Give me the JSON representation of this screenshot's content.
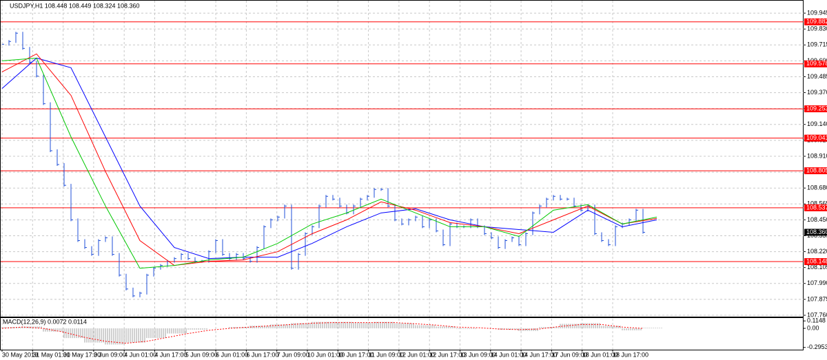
{
  "chart_data": {
    "type": "bars",
    "title": "USDJPY,H1  108.448 108.449 108.324 108.360",
    "color": "#1f4fd8",
    "values": [
      109.72,
      109.74,
      109.8,
      109.69,
      109.59,
      109.49,
      109.29,
      108.95,
      108.85,
      108.7,
      108.45,
      108.3,
      108.25,
      108.2,
      108.3,
      108.32,
      108.2,
      108.05,
      107.95,
      107.9,
      107.92,
      108.05,
      108.1,
      108.12,
      108.15,
      108.17,
      108.2,
      108.17,
      108.15,
      108.15,
      108.22,
      108.3,
      108.2,
      108.17,
      108.2,
      108.17,
      108.15,
      108.25,
      108.4,
      108.45,
      108.47,
      108.55,
      108.1,
      108.2,
      108.35,
      108.4,
      108.55,
      108.62,
      108.6,
      108.55,
      108.5,
      108.55,
      108.6,
      108.62,
      108.67,
      108.67,
      108.55,
      108.45,
      108.42,
      108.45,
      108.47,
      108.4,
      108.45,
      108.37,
      108.27,
      108.42,
      108.4,
      108.4,
      108.45,
      108.4,
      108.35,
      108.32,
      108.25,
      108.3,
      108.32,
      108.27,
      108.35,
      108.5,
      108.55,
      108.6,
      108.62,
      108.6,
      108.6,
      108.55,
      108.52,
      108.55,
      108.35,
      108.3,
      108.27,
      108.4,
      108.42,
      108.45,
      108.52,
      108.36
    ],
    "ylim": [
      107.75,
      110.04
    ],
    "yticks": [
      109.945,
      {
        "value": 109.83,
        "label": "109.830"
      },
      109.715,
      {
        "value": 109.6,
        "label": "109.600"
      },
      109.485,
      {
        "value": 109.37,
        "label": "109.370"
      },
      109.255,
      {
        "value": 109.14,
        "label": "109.140"
      },
      109.025,
      {
        "value": 108.91,
        "label": "108.910"
      },
      108.795,
      {
        "value": 108.68,
        "label": "108.680"
      },
      108.565,
      {
        "value": 108.45,
        "label": "108.450"
      },
      108.335,
      {
        "value": 108.22,
        "label": "108.220"
      },
      108.105,
      {
        "value": 107.99,
        "label": "107.990"
      },
      107.875,
      {
        "value": 107.76,
        "label": "107.760"
      }
    ],
    "grid": true,
    "moving_averages": [
      {
        "color": "#0000ff",
        "x": [
          0,
          5,
          10,
          15,
          20,
          25,
          30,
          35,
          40,
          45,
          50,
          55,
          60,
          65,
          70,
          75,
          80,
          85,
          90,
          95
        ],
        "values": [
          109.4,
          109.62,
          109.55,
          109.05,
          108.55,
          108.25,
          108.17,
          108.18,
          108.18,
          108.28,
          108.4,
          108.5,
          108.53,
          108.45,
          108.4,
          108.38,
          108.36,
          108.52,
          108.4,
          108.45
        ]
      },
      {
        "color": "#ff0000",
        "x": [
          0,
          5,
          10,
          15,
          20,
          25,
          30,
          35,
          40,
          45,
          50,
          55,
          60,
          65,
          70,
          75,
          80,
          85,
          90,
          95
        ],
        "values": [
          109.52,
          109.65,
          109.35,
          108.8,
          108.3,
          108.12,
          108.15,
          108.16,
          108.22,
          108.35,
          108.45,
          108.58,
          108.52,
          108.43,
          108.4,
          108.35,
          108.45,
          108.55,
          108.42,
          108.46
        ]
      },
      {
        "color": "#00c800",
        "x": [
          0,
          5,
          10,
          15,
          20,
          25,
          30,
          35,
          40,
          45,
          50,
          55,
          60,
          65,
          70,
          75,
          80,
          85,
          90,
          95
        ],
        "values": [
          109.6,
          109.62,
          109.05,
          108.55,
          108.1,
          108.12,
          108.16,
          108.18,
          108.28,
          108.42,
          108.5,
          108.6,
          108.5,
          108.4,
          108.4,
          108.33,
          108.52,
          108.56,
          108.42,
          108.47
        ]
      }
    ],
    "levels": {
      "color": "#ff0000",
      "values": [
        109.882,
        109.578,
        109.253,
        109.041,
        108.805,
        108.537,
        108.148
      ]
    },
    "last_price": {
      "value": 108.36,
      "label": "108.360"
    },
    "xtick_labels": [
      "30 May 2019",
      "31 May 01:00",
      "31 May 17:00",
      "3 Jun 09:00",
      "4 Jun 01:00",
      "4 Jun 17:00",
      "5 Jun 09:00",
      "6 Jun 01:00",
      "6 Jun 17:00",
      "7 Jun 09:00",
      "10 Jun 01:00",
      "10 Jun 17:00",
      "11 Jun 09:00",
      "12 Jun 01:00",
      "12 Jun 17:00",
      "13 Jun 09:00",
      "14 Jun 01:00",
      "14 Jun 17:00",
      "17 Jun 09:00",
      "18 Jun 01:00",
      "18 Jun 17:00"
    ],
    "indicator": {
      "type": "macd",
      "title": "MACD(12,26,9) 0.0072 0.0114",
      "x": [
        0,
        3,
        6,
        9,
        12,
        15,
        18,
        21,
        24,
        27,
        30,
        33,
        36,
        39,
        42,
        45,
        48,
        51,
        54,
        57,
        60,
        63,
        66,
        69,
        72,
        75,
        78,
        81,
        84,
        87,
        90,
        93
      ],
      "histogram": [
        0.02,
        0.03,
        -0.05,
        -0.15,
        -0.22,
        -0.25,
        -0.22,
        -0.15,
        -0.08,
        -0.02,
        0.0,
        0.02,
        0.04,
        0.06,
        0.08,
        0.1,
        0.1,
        0.09,
        0.1,
        0.08,
        0.05,
        0.03,
        -0.01,
        0.0,
        -0.02,
        -0.04,
        0.02,
        0.07,
        0.08,
        0.04,
        -0.03,
        0.01
      ],
      "signal": [
        0.0,
        0.02,
        0.0,
        -0.06,
        -0.14,
        -0.2,
        -0.23,
        -0.2,
        -0.14,
        -0.08,
        -0.03,
        0.0,
        0.02,
        0.04,
        0.06,
        0.08,
        0.09,
        0.09,
        0.09,
        0.09,
        0.07,
        0.05,
        0.02,
        0.01,
        -0.01,
        -0.02,
        -0.01,
        0.03,
        0.06,
        0.06,
        0.02,
        0.0
      ],
      "histogram_color": "#a0a0a0",
      "signal_color": "#ff0000",
      "ylim": [
        -0.33,
        0.16
      ],
      "yticks": [
        0.1148,
        {
          "value": 0,
          "label": "0.00"
        },
        -0.2953
      ]
    }
  }
}
